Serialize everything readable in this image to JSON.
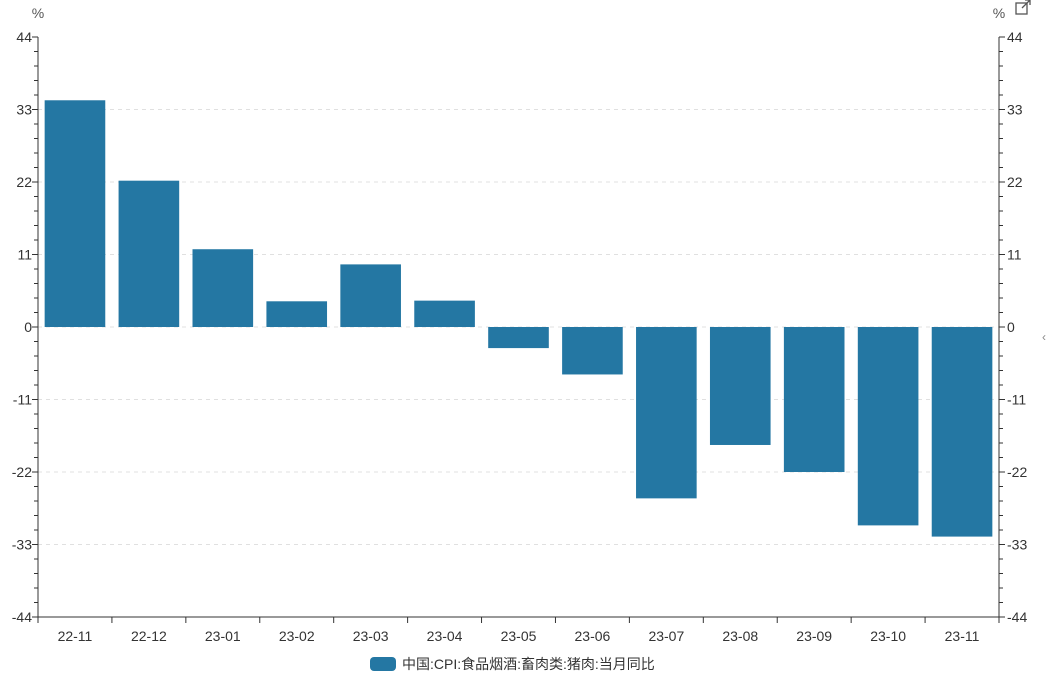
{
  "chart_data": {
    "type": "bar",
    "categories": [
      "22-11",
      "22-12",
      "23-01",
      "23-02",
      "23-03",
      "23-04",
      "23-05",
      "23-06",
      "23-07",
      "23-08",
      "23-09",
      "23-10",
      "23-11"
    ],
    "series": [
      {
        "name": "中国:CPI:食品烟酒:畜肉类:猪肉:当月同比",
        "values": [
          34.4,
          22.2,
          11.8,
          3.9,
          9.5,
          4.0,
          -3.2,
          -7.2,
          -26.0,
          -17.9,
          -22.0,
          -30.1,
          -31.8
        ],
        "color": "#2477a3"
      }
    ],
    "yticks": [
      44,
      33,
      22,
      11,
      0,
      -11,
      -22,
      -33,
      -44
    ],
    "ylim": [
      -44,
      44
    ],
    "y_unit_left": "%",
    "y_unit_right": "%",
    "grid": "horizontal dashed",
    "legend_position": "bottom-center"
  },
  "icons": {
    "export": "external-link-icon",
    "collapse": "chevron-left-icon"
  }
}
